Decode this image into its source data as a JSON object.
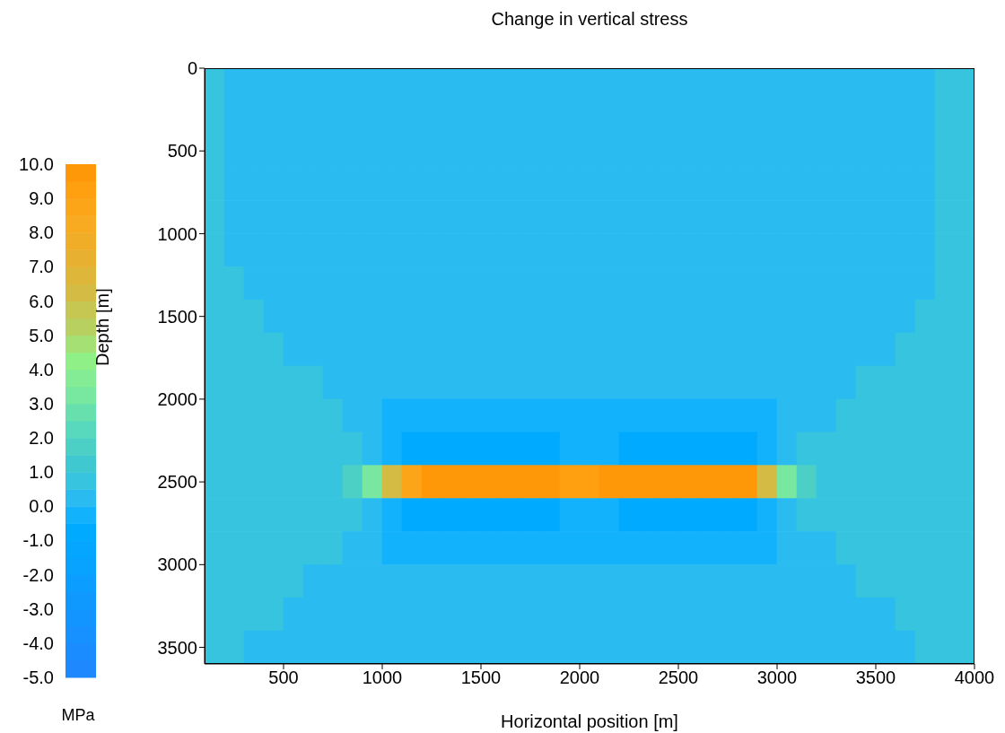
{
  "chart_data": {
    "type": "heatmap",
    "title": "Change in vertical stress",
    "xlabel": "Horizontal position [m]",
    "ylabel": "Depth [m]",
    "clabel": "MPa",
    "xlim": [
      100,
      4000
    ],
    "xticks": [
      500,
      1000,
      1500,
      2000,
      2500,
      3000,
      3500,
      4000
    ],
    "ylim": [
      3600,
      0
    ],
    "yticks": [
      0,
      500,
      1000,
      1500,
      2000,
      2500,
      3000,
      3500
    ],
    "clim": [
      -5,
      10
    ],
    "cticks": [
      {
        "value": -5,
        "label": "-5.0"
      },
      {
        "value": -4,
        "label": "-4.0"
      },
      {
        "value": -3,
        "label": "-3.0"
      },
      {
        "value": -2,
        "label": "-2.0"
      },
      {
        "value": -1,
        "label": "-1.0"
      },
      {
        "value": 0,
        "label": "0.0"
      },
      {
        "value": 1,
        "label": "1.0"
      },
      {
        "value": 2,
        "label": "2.0"
      },
      {
        "value": 3,
        "label": "3.0"
      },
      {
        "value": 4,
        "label": "4.0"
      },
      {
        "value": 5,
        "label": "5.0"
      },
      {
        "value": 6,
        "label": "6.0"
      },
      {
        "value": 7,
        "label": "7.0"
      },
      {
        "value": 8,
        "label": "8.0"
      },
      {
        "value": 9,
        "label": "9.0"
      },
      {
        "value": 10,
        "label": "10.0"
      }
    ],
    "cells": [
      [
        0.7,
        0.2,
        0.2,
        0.2,
        0.2,
        0.2,
        0.2,
        0.2,
        0.2,
        0.2,
        0.2,
        0.2,
        0.2,
        0.2,
        0.2,
        0.2,
        0.2,
        0.2,
        0.2,
        0.2,
        0.2,
        0.2,
        0.2,
        0.2,
        0.2,
        0.2,
        0.2,
        0.2,
        0.2,
        0.2,
        0.2,
        0.2,
        0.2,
        0.2,
        0.2,
        0.2,
        0.2,
        0.7,
        0.7
      ],
      [
        0.7,
        0.2,
        0.2,
        0.2,
        0.2,
        0.2,
        0.2,
        0.2,
        0.2,
        0.2,
        0.2,
        0.2,
        0.2,
        0.2,
        0.2,
        0.2,
        0.2,
        0.2,
        0.2,
        0.2,
        0.2,
        0.2,
        0.2,
        0.2,
        0.2,
        0.2,
        0.2,
        0.2,
        0.2,
        0.2,
        0.2,
        0.2,
        0.2,
        0.2,
        0.2,
        0.2,
        0.2,
        0.7,
        0.7
      ],
      [
        0.7,
        0.2,
        0.2,
        0.2,
        0.2,
        0.2,
        0.2,
        0.2,
        0.2,
        0.2,
        0.2,
        0.2,
        0.2,
        0.2,
        0.2,
        0.2,
        0.2,
        0.2,
        0.2,
        0.2,
        0.2,
        0.2,
        0.2,
        0.2,
        0.2,
        0.2,
        0.2,
        0.2,
        0.2,
        0.2,
        0.2,
        0.2,
        0.2,
        0.2,
        0.2,
        0.2,
        0.2,
        0.7,
        0.7
      ],
      [
        0.7,
        0.2,
        0.2,
        0.2,
        0.2,
        0.2,
        0.2,
        0.2,
        0.2,
        0.2,
        0.2,
        0.2,
        0.2,
        0.2,
        0.2,
        0.2,
        0.2,
        0.2,
        0.2,
        0.2,
        0.2,
        0.2,
        0.2,
        0.2,
        0.2,
        0.2,
        0.2,
        0.2,
        0.2,
        0.2,
        0.2,
        0.2,
        0.2,
        0.2,
        0.2,
        0.2,
        0.2,
        0.7,
        0.7
      ],
      [
        0.7,
        0.2,
        0.2,
        0.2,
        0.2,
        0.2,
        0.2,
        0.2,
        0.2,
        0.2,
        0.2,
        0.2,
        0.2,
        0.2,
        0.2,
        0.2,
        0.2,
        0.2,
        0.2,
        0.2,
        0.2,
        0.2,
        0.2,
        0.2,
        0.2,
        0.2,
        0.2,
        0.2,
        0.2,
        0.2,
        0.2,
        0.2,
        0.2,
        0.2,
        0.2,
        0.2,
        0.2,
        0.7,
        0.7
      ],
      [
        0.7,
        0.2,
        0.2,
        0.2,
        0.2,
        0.2,
        0.2,
        0.2,
        0.2,
        0.2,
        0.2,
        0.2,
        0.2,
        0.2,
        0.2,
        0.2,
        0.2,
        0.2,
        0.2,
        0.2,
        0.2,
        0.2,
        0.2,
        0.2,
        0.2,
        0.2,
        0.2,
        0.2,
        0.2,
        0.2,
        0.2,
        0.2,
        0.2,
        0.2,
        0.2,
        0.2,
        0.2,
        0.7,
        0.7
      ],
      [
        0.7,
        0.7,
        0.2,
        0.2,
        0.2,
        0.2,
        0.2,
        0.2,
        0.2,
        0.2,
        0.2,
        0.2,
        0.2,
        0.2,
        0.2,
        0.2,
        0.2,
        0.2,
        0.2,
        0.2,
        0.2,
        0.2,
        0.2,
        0.2,
        0.2,
        0.2,
        0.2,
        0.2,
        0.2,
        0.2,
        0.2,
        0.2,
        0.2,
        0.2,
        0.2,
        0.2,
        0.2,
        0.7,
        0.7
      ],
      [
        0.7,
        0.7,
        0.7,
        0.2,
        0.2,
        0.2,
        0.2,
        0.2,
        0.2,
        0.2,
        0.2,
        0.2,
        0.2,
        0.2,
        0.2,
        0.2,
        0.2,
        0.2,
        0.2,
        0.2,
        0.2,
        0.2,
        0.2,
        0.2,
        0.2,
        0.2,
        0.2,
        0.2,
        0.2,
        0.2,
        0.2,
        0.2,
        0.2,
        0.2,
        0.2,
        0.2,
        0.7,
        0.7,
        0.7
      ],
      [
        0.7,
        0.7,
        0.7,
        0.7,
        0.2,
        0.2,
        0.2,
        0.2,
        0.2,
        0.2,
        0.2,
        0.2,
        0.2,
        0.2,
        0.2,
        0.2,
        0.2,
        0.2,
        0.2,
        0.2,
        0.2,
        0.2,
        0.2,
        0.2,
        0.2,
        0.2,
        0.2,
        0.2,
        0.2,
        0.2,
        0.2,
        0.2,
        0.2,
        0.2,
        0.2,
        0.7,
        0.7,
        0.7,
        0.7
      ],
      [
        0.7,
        0.7,
        0.7,
        0.7,
        0.7,
        0.7,
        0.2,
        0.2,
        0.2,
        0.2,
        0.2,
        0.2,
        0.2,
        0.2,
        0.2,
        0.2,
        0.2,
        0.2,
        0.2,
        0.2,
        0.2,
        0.2,
        0.2,
        0.2,
        0.2,
        0.2,
        0.2,
        0.2,
        0.2,
        0.2,
        0.2,
        0.2,
        0.2,
        0.7,
        0.7,
        0.7,
        0.7,
        0.7,
        0.7
      ],
      [
        0.7,
        0.7,
        0.7,
        0.7,
        0.7,
        0.7,
        0.7,
        0.2,
        0.2,
        -0.3,
        -0.3,
        -0.3,
        -0.3,
        -0.3,
        -0.3,
        -0.3,
        -0.3,
        -0.3,
        -0.3,
        -0.3,
        -0.3,
        -0.3,
        -0.3,
        -0.3,
        -0.3,
        -0.3,
        -0.3,
        -0.3,
        -0.3,
        0.2,
        0.2,
        0.2,
        0.7,
        0.7,
        0.7,
        0.7,
        0.7,
        0.7,
        0.7
      ],
      [
        0.7,
        0.7,
        0.7,
        0.7,
        0.7,
        0.7,
        0.7,
        0.7,
        0.2,
        -0.3,
        -0.8,
        -0.8,
        -0.8,
        -0.8,
        -0.8,
        -0.8,
        -0.8,
        -0.8,
        -0.3,
        -0.3,
        -0.3,
        -0.8,
        -0.8,
        -0.8,
        -0.8,
        -0.8,
        -0.8,
        -0.8,
        -0.3,
        0.2,
        0.7,
        0.7,
        0.7,
        0.7,
        0.7,
        0.7,
        0.7,
        0.7,
        0.7
      ],
      [
        0.7,
        0.7,
        0.7,
        0.7,
        0.7,
        0.7,
        0.7,
        1.5,
        3,
        6,
        8.5,
        9.5,
        9.5,
        9.5,
        9.5,
        9.5,
        9.5,
        9.5,
        9,
        9,
        9.5,
        9.5,
        9.5,
        9.5,
        9.5,
        9.5,
        9.5,
        9.5,
        6,
        3,
        1.5,
        0.7,
        0.7,
        0.7,
        0.7,
        0.7,
        0.7,
        0.7,
        0.7
      ],
      [
        0.7,
        0.7,
        0.7,
        0.7,
        0.7,
        0.7,
        0.7,
        0.7,
        0.2,
        -0.3,
        -0.8,
        -0.8,
        -0.8,
        -0.8,
        -0.8,
        -0.8,
        -0.8,
        -0.8,
        -0.3,
        -0.3,
        -0.3,
        -0.8,
        -0.8,
        -0.8,
        -0.8,
        -0.8,
        -0.8,
        -0.8,
        -0.3,
        0.2,
        0.7,
        0.7,
        0.7,
        0.7,
        0.7,
        0.7,
        0.7,
        0.7,
        0.7
      ],
      [
        0.7,
        0.7,
        0.7,
        0.7,
        0.7,
        0.7,
        0.7,
        0.2,
        0.2,
        -0.3,
        -0.3,
        -0.3,
        -0.3,
        -0.3,
        -0.3,
        -0.3,
        -0.3,
        -0.3,
        -0.3,
        -0.3,
        -0.3,
        -0.3,
        -0.3,
        -0.3,
        -0.3,
        -0.3,
        -0.3,
        -0.3,
        -0.3,
        0.2,
        0.2,
        0.2,
        0.7,
        0.7,
        0.7,
        0.7,
        0.7,
        0.7,
        0.7
      ],
      [
        0.7,
        0.7,
        0.7,
        0.7,
        0.7,
        0.2,
        0.2,
        0.2,
        0.2,
        0.2,
        0.2,
        0.2,
        0.2,
        0.2,
        0.2,
        0.2,
        0.2,
        0.2,
        0.2,
        0.2,
        0.2,
        0.2,
        0.2,
        0.2,
        0.2,
        0.2,
        0.2,
        0.2,
        0.2,
        0.2,
        0.2,
        0.2,
        0.2,
        0.7,
        0.7,
        0.7,
        0.7,
        0.7,
        0.7
      ],
      [
        0.7,
        0.7,
        0.7,
        0.7,
        0.2,
        0.2,
        0.2,
        0.2,
        0.2,
        0.2,
        0.2,
        0.2,
        0.2,
        0.2,
        0.2,
        0.2,
        0.2,
        0.2,
        0.2,
        0.2,
        0.2,
        0.2,
        0.2,
        0.2,
        0.2,
        0.2,
        0.2,
        0.2,
        0.2,
        0.2,
        0.2,
        0.2,
        0.2,
        0.2,
        0.2,
        0.7,
        0.7,
        0.7,
        0.7
      ],
      [
        0.7,
        0.7,
        0.2,
        0.2,
        0.2,
        0.2,
        0.2,
        0.2,
        0.2,
        0.2,
        0.2,
        0.2,
        0.2,
        0.2,
        0.2,
        0.2,
        0.2,
        0.2,
        0.2,
        0.2,
        0.2,
        0.2,
        0.2,
        0.2,
        0.2,
        0.2,
        0.2,
        0.2,
        0.2,
        0.2,
        0.2,
        0.2,
        0.2,
        0.2,
        0.2,
        0.2,
        0.7,
        0.7,
        0.7
      ]
    ]
  }
}
